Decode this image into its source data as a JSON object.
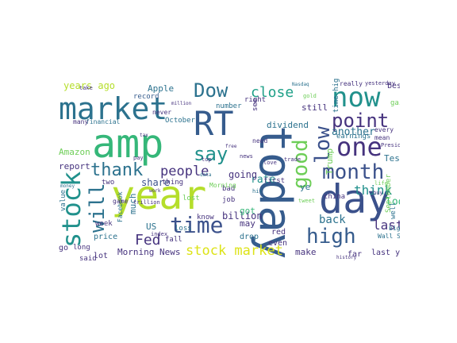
{
  "palette": {
    "dark_purple": "#46337e",
    "purple": "#482878",
    "indigo": "#3b518b",
    "blue": "#365c8d",
    "steel": "#2c728e",
    "teal": "#21918c",
    "teal_green": "#1fa088",
    "green": "#35b779",
    "lime": "#6ece58",
    "yellow_green": "#b5de2b",
    "yellow": "#dde318"
  },
  "words": [
    {
      "text": "amp",
      "color": "#35b779"
    },
    {
      "text": "today",
      "color": "#365c8d"
    },
    {
      "text": "year",
      "color": "#b5de2b"
    },
    {
      "text": "market",
      "color": "#2c728e"
    },
    {
      "text": "RT",
      "color": "#365c8d"
    },
    {
      "text": "day",
      "color": "#3b518b"
    },
    {
      "text": "now",
      "color": "#21918c"
    },
    {
      "text": "one",
      "color": "#46337e"
    },
    {
      "text": "stock",
      "color": "#21918c"
    },
    {
      "text": "will",
      "color": "#2c728e"
    },
    {
      "text": "time",
      "color": "#3b518b"
    },
    {
      "text": "month",
      "color": "#3b518b"
    },
    {
      "text": "high",
      "color": "#365c8d"
    },
    {
      "text": "good",
      "color": "#6ece58"
    },
    {
      "text": "low",
      "color": "#3b518b"
    },
    {
      "text": "point",
      "color": "#46337e"
    },
    {
      "text": "Dow",
      "color": "#2c728e"
    },
    {
      "text": "say",
      "color": "#21918c"
    },
    {
      "text": "thank",
      "color": "#2c728e"
    },
    {
      "text": "people",
      "color": "#46337e"
    },
    {
      "text": "close",
      "color": "#1fa088"
    },
    {
      "text": "stock market",
      "color": "#dde318"
    },
    {
      "text": "think",
      "color": "#21918c"
    },
    {
      "text": "Fed",
      "color": "#46337e"
    },
    {
      "text": "last",
      "color": "#46337e"
    },
    {
      "text": "years ago",
      "color": "#b5de2b"
    },
    {
      "text": "Morning News",
      "color": "#46337e"
    },
    {
      "text": "rate",
      "color": "#21918c"
    },
    {
      "text": "going",
      "color": "#46337e"
    },
    {
      "text": "billion",
      "color": "#46337e"
    },
    {
      "text": "another",
      "color": "#2c728e"
    },
    {
      "text": "look",
      "color": "#35b779"
    },
    {
      "text": "back",
      "color": "#2c728e"
    },
    {
      "text": "share",
      "color": "#3b518b"
    },
    {
      "text": "Apple",
      "color": "#2c728e"
    },
    {
      "text": "Amazon",
      "color": "#6ece58"
    },
    {
      "text": "Tesla",
      "color": "#2c728e"
    },
    {
      "text": "Trump",
      "color": "#6ece58"
    },
    {
      "text": "still",
      "color": "#46337e"
    },
    {
      "text": "dividend",
      "color": "#2c728e"
    },
    {
      "text": "report",
      "color": "#46337e"
    },
    {
      "text": "make",
      "color": "#46337e"
    },
    {
      "text": "last year",
      "color": "#46337e"
    },
    {
      "text": "US",
      "color": "#2c728e"
    },
    {
      "text": "much",
      "color": "#2c728e"
    },
    {
      "text": "got",
      "color": "#35b779"
    },
    {
      "text": "may",
      "color": "#46337e"
    },
    {
      "text": "red",
      "color": "#46337e"
    },
    {
      "text": "even",
      "color": "#46337e"
    },
    {
      "text": "drop",
      "color": "#2c728e"
    },
    {
      "text": "far",
      "color": "#46337e"
    },
    {
      "text": "best",
      "color": "#46337e"
    },
    {
      "text": "gain",
      "color": "#6ece58"
    },
    {
      "text": "record",
      "color": "#365c8d"
    },
    {
      "text": "October",
      "color": "#2c728e"
    },
    {
      "text": "never",
      "color": "#46337e"
    },
    {
      "text": "number",
      "color": "#2c728e"
    },
    {
      "text": "right",
      "color": "#46337e"
    },
    {
      "text": "bad",
      "color": "#46337e"
    },
    {
      "text": "thing",
      "color": "#46337e"
    },
    {
      "text": "loss",
      "color": "#2c728e"
    },
    {
      "text": "price",
      "color": "#2c728e"
    },
    {
      "text": "lot",
      "color": "#46337e"
    },
    {
      "text": "said",
      "color": "#46337e"
    },
    {
      "text": "two",
      "color": "#46337e"
    },
    {
      "text": "go",
      "color": "#46337e"
    },
    {
      "text": "long",
      "color": "#46337e"
    },
    {
      "text": "week",
      "color": "#46337e"
    },
    {
      "text": "first",
      "color": "#46337e"
    },
    {
      "text": "job",
      "color": "#46337e"
    },
    {
      "text": "know",
      "color": "#46337e"
    },
    {
      "text": "lost",
      "color": "#6ece58"
    },
    {
      "text": "mean",
      "color": "#46337e"
    },
    {
      "text": "earnings",
      "color": "#2c728e"
    },
    {
      "text": "china",
      "color": "#46337e"
    },
    {
      "text": "need",
      "color": "#46337e"
    },
    {
      "text": "every",
      "color": "#46337e"
    },
    {
      "text": "value",
      "color": "#2c728e"
    },
    {
      "text": "see",
      "color": "#46337e"
    },
    {
      "text": "ye",
      "color": "#2c728e"
    },
    {
      "text": "President",
      "color": "#46337e"
    },
    {
      "text": "Wall Street",
      "color": "#2c728e"
    },
    {
      "text": "September",
      "color": "#6ece58"
    },
    {
      "text": "time high",
      "color": "#2c728e"
    },
    {
      "text": "trillion",
      "color": "#46337e"
    },
    {
      "text": "financial",
      "color": "#2c728e"
    },
    {
      "text": "Morning",
      "color": "#6ece58"
    },
    {
      "text": "Facebook",
      "color": "#2c728e"
    },
    {
      "text": "really",
      "color": "#46337e"
    },
    {
      "text": "yesterday",
      "color": "#46337e"
    },
    {
      "text": "index",
      "color": "#46337e"
    },
    {
      "text": "fall",
      "color": "#46337e"
    },
    {
      "text": "game",
      "color": "#46337e"
    },
    {
      "text": "tweet",
      "color": "#6ece58"
    },
    {
      "text": "many",
      "color": "#46337e"
    },
    {
      "text": "take",
      "color": "#46337e"
    },
    {
      "text": "gold",
      "color": "#6ece58"
    },
    {
      "text": "buy",
      "color": "#46337e"
    },
    {
      "text": "love",
      "color": "#46337e"
    },
    {
      "text": "big",
      "color": "#2c728e"
    },
    {
      "text": "well",
      "color": "#2c728e"
    },
    {
      "text": "pay",
      "color": "#46337e"
    },
    {
      "text": "top",
      "color": "#46337e"
    },
    {
      "text": "hit",
      "color": "#2c728e"
    },
    {
      "text": "Nasdaq",
      "color": "#2c728e"
    },
    {
      "text": "million",
      "color": "#46337e"
    },
    {
      "text": "history",
      "color": "#46337e"
    },
    {
      "text": "free",
      "color": "#46337e"
    },
    {
      "text": "life",
      "color": "#6ece58"
    },
    {
      "text": "tax",
      "color": "#46337e"
    },
    {
      "text": "money",
      "color": "#2c728e"
    },
    {
      "text": "news",
      "color": "#46337e"
    },
    {
      "text": "work",
      "color": "#46337e"
    },
    {
      "text": "data",
      "color": "#2c728e"
    },
    {
      "text": "trade",
      "color": "#46337e"
    }
  ]
}
